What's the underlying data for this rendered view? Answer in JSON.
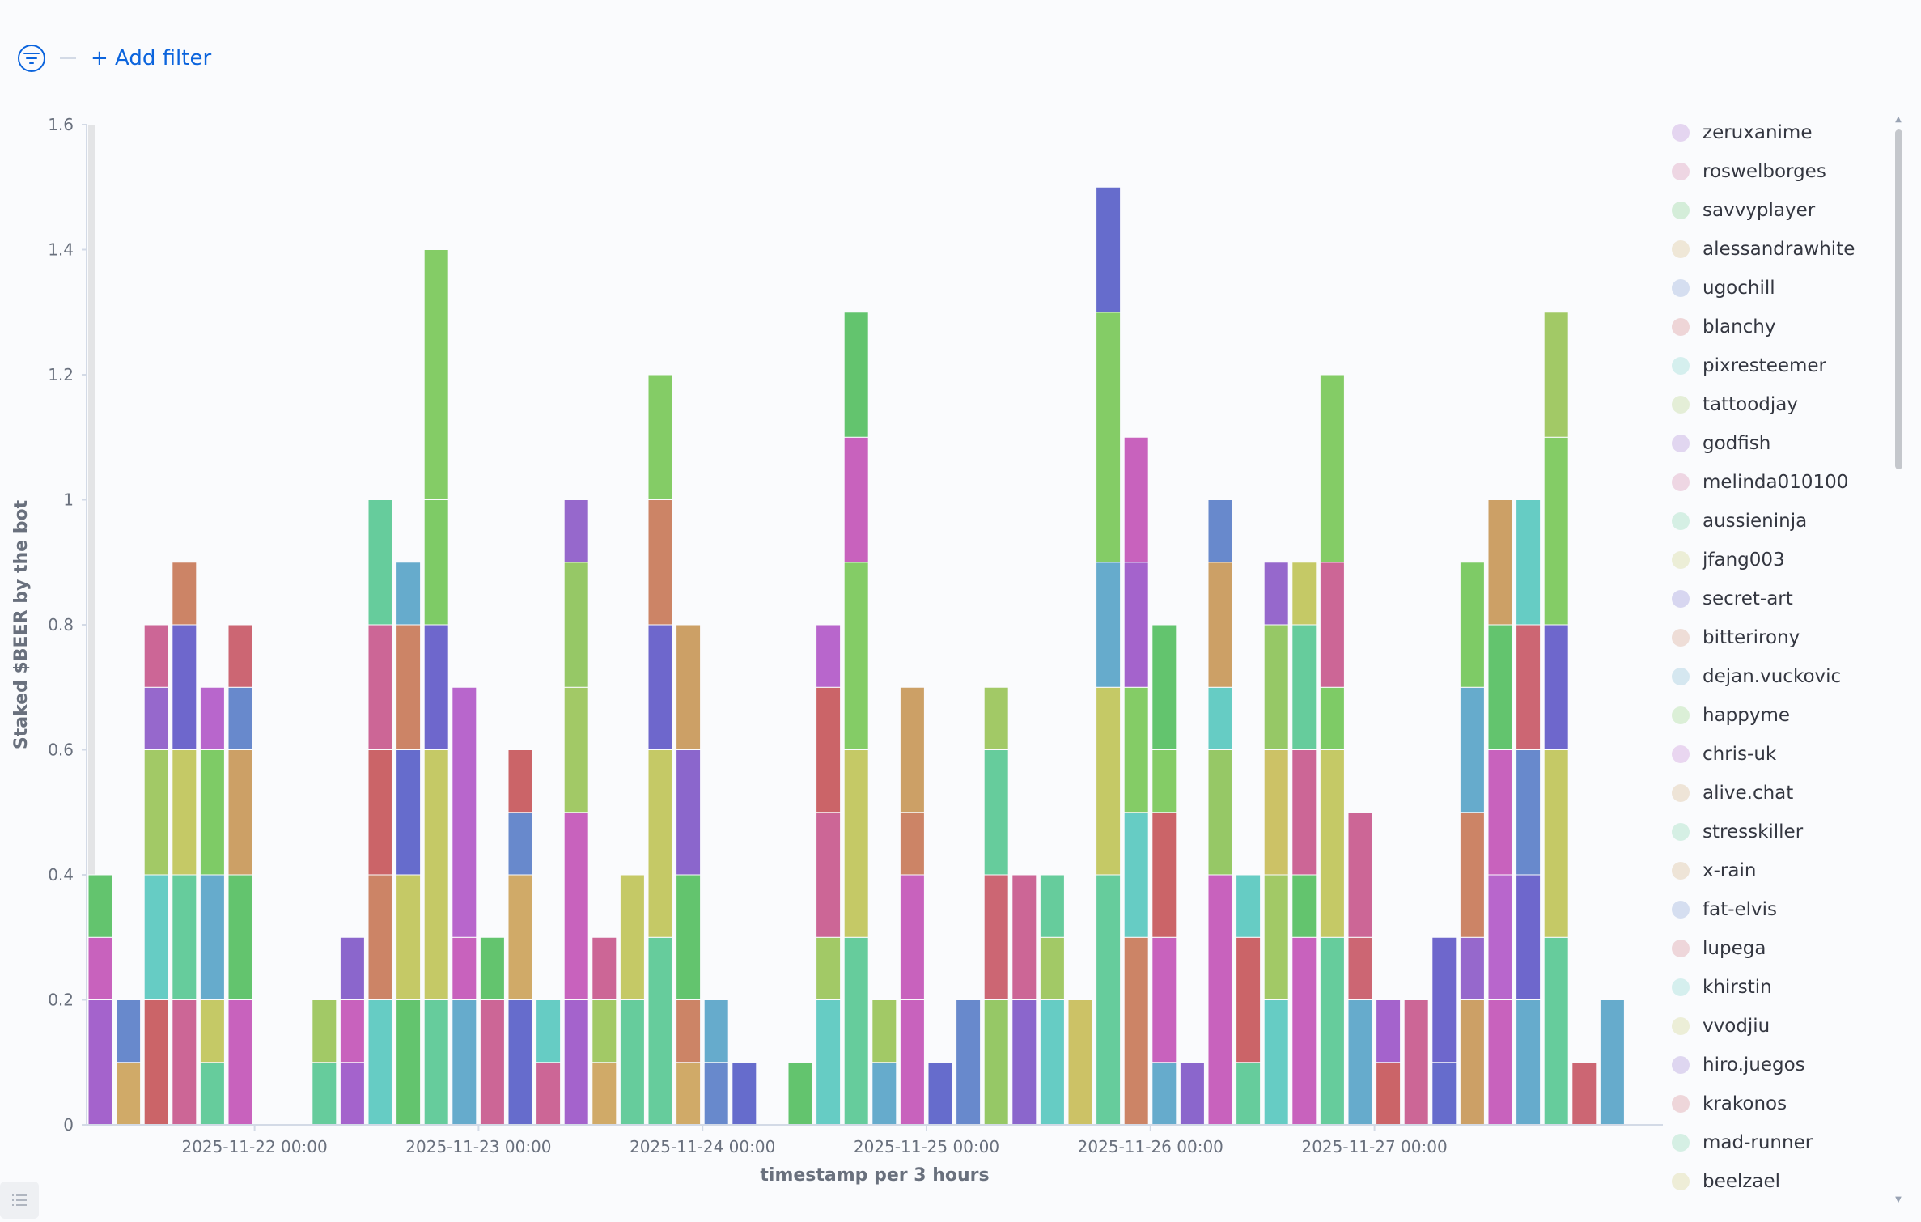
{
  "filter_bar": {
    "add_filter_label": "+ Add filter",
    "filter_icon": "filter-icon"
  },
  "colors": {
    "purple": "#a463cc",
    "magenta": "#c862bd",
    "green": "#63c46e",
    "tan": "#d0aa68",
    "blue": "#6889cc",
    "red": "#cb6468",
    "cyan": "#66ccc4",
    "lime": "#a2c966",
    "purple2": "#9668cc",
    "pink": "#cc6696",
    "teal": "#66cc9c",
    "yellow": "#c5c966",
    "indigo": "#6e67cc",
    "orange": "#cc8466",
    "steel": "#66abcc",
    "green2": "#7ecb66",
    "orchid": "#b866cc",
    "sand": "#cca066",
    "red2": "#cc6673",
    "violet": "#8b66cc",
    "indigo2": "#666ccc",
    "green3": "#84cc66",
    "olive": "#96c866",
    "yellow2": "#ccc266"
  },
  "chart_data": {
    "type": "bar",
    "stacked": true,
    "xlabel": "timestamp per 3 hours",
    "ylabel": "Staked $BEER by the bot",
    "ylim": [
      0,
      1.6
    ],
    "yticks": [
      "0",
      "0.2",
      "0.4",
      "0.6",
      "0.8",
      "1",
      "1.2",
      "1.4",
      "1.6"
    ],
    "xticks": [
      "2025-11-22 00:00",
      "2025-11-23 00:00",
      "2025-11-24 00:00",
      "2025-11-25 00:00",
      "2025-11-26 00:00",
      "2025-11-27 00:00"
    ],
    "x_start": "2025-11-21 06:00",
    "interval_hours": 3,
    "grid": false,
    "legend_position": "right",
    "bars": [
      [
        [
          "purple",
          0.2
        ],
        [
          "magenta",
          0.1
        ],
        [
          "green",
          0.1
        ]
      ],
      [
        [
          "tan",
          0.1
        ],
        [
          "blue",
          0.1
        ]
      ],
      [
        [
          "red",
          0.2
        ],
        [
          "cyan",
          0.2
        ],
        [
          "lime",
          0.2
        ],
        [
          "purple2",
          0.1
        ],
        [
          "pink",
          0.1
        ]
      ],
      [
        [
          "pink",
          0.2
        ],
        [
          "teal",
          0.2
        ],
        [
          "yellow",
          0.2
        ],
        [
          "indigo",
          0.2
        ],
        [
          "orange",
          0.1
        ]
      ],
      [
        [
          "teal",
          0.1
        ],
        [
          "yellow",
          0.1
        ],
        [
          "steel",
          0.2
        ],
        [
          "green2",
          0.2
        ],
        [
          "orchid",
          0.1
        ]
      ],
      [
        [
          "magenta",
          0.2
        ],
        [
          "green",
          0.2
        ],
        [
          "sand",
          0.2
        ],
        [
          "blue",
          0.1
        ],
        [
          "red2",
          0.1
        ]
      ],
      [],
      [],
      [
        [
          "teal",
          0.1
        ],
        [
          "lime",
          0.1
        ]
      ],
      [
        [
          "purple",
          0.1
        ],
        [
          "magenta",
          0.1
        ],
        [
          "violet",
          0.1
        ]
      ],
      [
        [
          "cyan",
          0.2
        ],
        [
          "orange",
          0.2
        ],
        [
          "red",
          0.2
        ],
        [
          "pink",
          0.2
        ],
        [
          "teal",
          0.2
        ]
      ],
      [
        [
          "green",
          0.2
        ],
        [
          "yellow",
          0.2
        ],
        [
          "indigo2",
          0.2
        ],
        [
          "orange",
          0.2
        ],
        [
          "steel",
          0.1
        ]
      ],
      [
        [
          "teal",
          0.2
        ],
        [
          "yellow",
          0.4
        ],
        [
          "indigo",
          0.2
        ],
        [
          "green2",
          0.2
        ],
        [
          "green3",
          0.4
        ]
      ],
      [
        [
          "steel",
          0.2
        ],
        [
          "magenta",
          0.1
        ],
        [
          "orchid",
          0.4
        ]
      ],
      [
        [
          "pink",
          0.2
        ],
        [
          "green",
          0.1
        ]
      ],
      [
        [
          "indigo2",
          0.2
        ],
        [
          "tan",
          0.2
        ],
        [
          "blue",
          0.1
        ],
        [
          "red",
          0.1
        ]
      ],
      [
        [
          "pink",
          0.1
        ],
        [
          "cyan",
          0.1
        ]
      ],
      [
        [
          "purple",
          0.2
        ],
        [
          "magenta",
          0.3
        ],
        [
          "lime",
          0.2
        ],
        [
          "olive",
          0.2
        ],
        [
          "purple2",
          0.1
        ]
      ],
      [
        [
          "tan",
          0.1
        ],
        [
          "lime",
          0.1
        ],
        [
          "pink",
          0.1
        ]
      ],
      [
        [
          "teal",
          0.2
        ],
        [
          "yellow",
          0.2
        ]
      ],
      [
        [
          "teal",
          0.3
        ],
        [
          "yellow",
          0.3
        ],
        [
          "indigo",
          0.2
        ],
        [
          "orange",
          0.2
        ],
        [
          "green3",
          0.2
        ]
      ],
      [
        [
          "tan",
          0.1
        ],
        [
          "orange",
          0.1
        ],
        [
          "green",
          0.2
        ],
        [
          "violet",
          0.2
        ],
        [
          "sand",
          0.2
        ]
      ],
      [
        [
          "blue",
          0.1
        ],
        [
          "steel",
          0.1
        ]
      ],
      [
        [
          "indigo2",
          0.1
        ]
      ],
      [],
      [
        [
          "green",
          0.1
        ]
      ],
      [
        [
          "cyan",
          0.2
        ],
        [
          "lime",
          0.1
        ],
        [
          "pink",
          0.2
        ],
        [
          "red",
          0.2
        ],
        [
          "orchid",
          0.1
        ]
      ],
      [
        [
          "teal",
          0.3
        ],
        [
          "yellow",
          0.3
        ],
        [
          "green3",
          0.3
        ],
        [
          "magenta",
          0.2
        ],
        [
          "green",
          0.2
        ]
      ],
      [
        [
          "steel",
          0.1
        ],
        [
          "lime",
          0.1
        ]
      ],
      [
        [
          "magenta",
          0.2
        ],
        [
          "magenta",
          0.2
        ],
        [
          "orange",
          0.1
        ],
        [
          "sand",
          0.2
        ]
      ],
      [
        [
          "indigo2",
          0.1
        ]
      ],
      [
        [
          "blue",
          0.2
        ]
      ],
      [
        [
          "olive",
          0.2
        ],
        [
          "red2",
          0.2
        ],
        [
          "teal",
          0.2
        ],
        [
          "lime",
          0.1
        ]
      ],
      [
        [
          "violet",
          0.2
        ],
        [
          "pink",
          0.2
        ]
      ],
      [
        [
          "cyan",
          0.2
        ],
        [
          "lime",
          0.1
        ],
        [
          "teal",
          0.1
        ]
      ],
      [
        [
          "yellow2",
          0.2
        ]
      ],
      [
        [
          "teal",
          0.4
        ],
        [
          "yellow",
          0.3
        ],
        [
          "steel",
          0.2
        ],
        [
          "green3",
          0.4
        ],
        [
          "indigo2",
          0.2
        ]
      ],
      [
        [
          "orange",
          0.3
        ],
        [
          "cyan",
          0.2
        ],
        [
          "green3",
          0.2
        ],
        [
          "purple",
          0.2
        ],
        [
          "magenta",
          0.2
        ]
      ],
      [
        [
          "steel",
          0.1
        ],
        [
          "magenta",
          0.2
        ],
        [
          "red",
          0.2
        ],
        [
          "green3",
          0.1
        ],
        [
          "green",
          0.2
        ]
      ],
      [
        [
          "violet",
          0.1
        ]
      ],
      [
        [
          "magenta",
          0.4
        ],
        [
          "olive",
          0.2
        ],
        [
          "cyan",
          0.1
        ],
        [
          "sand",
          0.2
        ],
        [
          "blue",
          0.1
        ]
      ],
      [
        [
          "teal",
          0.1
        ],
        [
          "red",
          0.2
        ],
        [
          "cyan",
          0.1
        ]
      ],
      [
        [
          "cyan",
          0.2
        ],
        [
          "lime",
          0.2
        ],
        [
          "yellow2",
          0.2
        ],
        [
          "olive",
          0.2
        ],
        [
          "purple2",
          0.1
        ]
      ],
      [
        [
          "magenta",
          0.3
        ],
        [
          "green",
          0.1
        ],
        [
          "pink",
          0.2
        ],
        [
          "teal",
          0.2
        ],
        [
          "yellow",
          0.1
        ]
      ],
      [
        [
          "teal",
          0.3
        ],
        [
          "yellow",
          0.3
        ],
        [
          "green2",
          0.1
        ],
        [
          "pink",
          0.2
        ],
        [
          "green3",
          0.3
        ]
      ],
      [
        [
          "steel",
          0.2
        ],
        [
          "red2",
          0.1
        ],
        [
          "pink",
          0.2
        ]
      ],
      [
        [
          "red",
          0.1
        ],
        [
          "purple",
          0.1
        ]
      ],
      [
        [
          "pink",
          0.2
        ]
      ],
      [
        [
          "indigo2",
          0.1
        ],
        [
          "indigo",
          0.2
        ]
      ],
      [
        [
          "sand",
          0.2
        ],
        [
          "purple2",
          0.1
        ],
        [
          "orange",
          0.2
        ],
        [
          "steel",
          0.2
        ],
        [
          "green2",
          0.2
        ]
      ],
      [
        [
          "magenta",
          0.2
        ],
        [
          "orchid",
          0.2
        ],
        [
          "magenta",
          0.2
        ],
        [
          "green",
          0.2
        ],
        [
          "sand",
          0.2
        ]
      ],
      [
        [
          "steel",
          0.2
        ],
        [
          "indigo",
          0.2
        ],
        [
          "blue",
          0.2
        ],
        [
          "red2",
          0.2
        ],
        [
          "cyan",
          0.2
        ]
      ],
      [
        [
          "teal",
          0.3
        ],
        [
          "yellow",
          0.3
        ],
        [
          "indigo",
          0.2
        ],
        [
          "green3",
          0.3
        ],
        [
          "lime",
          0.2
        ]
      ],
      [
        [
          "red2",
          0.1
        ]
      ],
      [
        [
          "steel",
          0.2
        ]
      ]
    ]
  },
  "legend": {
    "items": [
      {
        "label": "zeruxanime",
        "color": "#a463cc"
      },
      {
        "label": "roswelborges",
        "color": "#cc6696"
      },
      {
        "label": "savvyplayer",
        "color": "#63c46e"
      },
      {
        "label": "alessandrawhite",
        "color": "#d0aa68"
      },
      {
        "label": "ugochill",
        "color": "#6889cc"
      },
      {
        "label": "blanchy",
        "color": "#cb6468"
      },
      {
        "label": "pixresteemer",
        "color": "#66ccc4"
      },
      {
        "label": "tattoodjay",
        "color": "#a2c966"
      },
      {
        "label": "godfish",
        "color": "#9668cc"
      },
      {
        "label": "melinda010100",
        "color": "#cc6696"
      },
      {
        "label": "aussieninja",
        "color": "#66cc9c"
      },
      {
        "label": "jfang003",
        "color": "#c5c966"
      },
      {
        "label": "secret-art",
        "color": "#6e67cc"
      },
      {
        "label": "bitterirony",
        "color": "#cc8466"
      },
      {
        "label": "dejan.vuckovic",
        "color": "#66abcc"
      },
      {
        "label": "happyme",
        "color": "#7ecb66"
      },
      {
        "label": "chris-uk",
        "color": "#b866cc"
      },
      {
        "label": "alive.chat",
        "color": "#cca066"
      },
      {
        "label": "stresskiller",
        "color": "#66cc9c"
      },
      {
        "label": "x-rain",
        "color": "#cca066"
      },
      {
        "label": "fat-elvis",
        "color": "#6889cc"
      },
      {
        "label": "lupega",
        "color": "#cc6673"
      },
      {
        "label": "khirstin",
        "color": "#66ccc4"
      },
      {
        "label": "vvodjiu",
        "color": "#c5c966"
      },
      {
        "label": "hiro.juegos",
        "color": "#8b66cc"
      },
      {
        "label": "krakonos",
        "color": "#cc6673"
      },
      {
        "label": "mad-runner",
        "color": "#66cc9c"
      },
      {
        "label": "beelzael",
        "color": "#ccc266"
      }
    ]
  }
}
